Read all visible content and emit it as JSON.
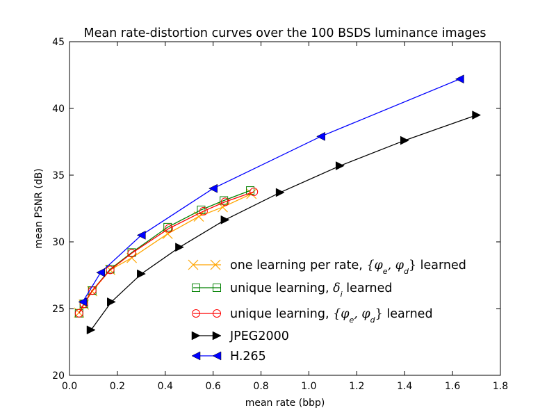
{
  "chart_data": {
    "type": "line",
    "title": "Mean rate-distortion curves over the 100 BSDS luminance images",
    "xlabel": "mean rate (bbp)",
    "ylabel": "mean PSNR (dB)",
    "xlim": [
      0.0,
      1.8
    ],
    "ylim": [
      20,
      45
    ],
    "x_ticks": [
      "0.0",
      "0.2",
      "0.4",
      "0.6",
      "0.8",
      "1.0",
      "1.2",
      "1.4",
      "1.6",
      "1.8"
    ],
    "y_ticks": [
      "20",
      "25",
      "30",
      "35",
      "40",
      "45"
    ],
    "grid": false,
    "legend_position": "lower-right",
    "series": [
      {
        "name": "one learning per rate, {φe, φd} learned",
        "legend_main": "one learning per rate, ",
        "legend_math": "{φ",
        "legend_sub1": "e",
        "legend_mid": ", φ",
        "legend_sub2": "d",
        "legend_end": "}",
        "legend_tail": " learned",
        "color": "#ffa500",
        "marker": "x",
        "x": [
          0.04,
          0.06,
          0.095,
          0.17,
          0.26,
          0.41,
          0.54,
          0.64,
          0.76
        ],
        "y": [
          24.7,
          25.3,
          26.3,
          27.9,
          28.8,
          30.6,
          31.9,
          32.6,
          33.6
        ]
      },
      {
        "name": "unique learning, δi learned",
        "legend_main": "unique learning, ",
        "legend_math": "δ",
        "legend_sub1": "i",
        "legend_tail": " learned",
        "color": "#008000",
        "marker": "square",
        "x": [
          0.04,
          0.06,
          0.095,
          0.17,
          0.26,
          0.41,
          0.55,
          0.645,
          0.755
        ],
        "y": [
          24.65,
          25.35,
          26.35,
          27.95,
          29.2,
          31.1,
          32.4,
          33.1,
          33.85
        ]
      },
      {
        "name": "unique learning, {φe, φd} learned",
        "legend_main": "unique learning, ",
        "legend_math": "{φ",
        "legend_sub1": "e",
        "legend_mid": ", φ",
        "legend_sub2": "d",
        "legend_end": "}",
        "legend_tail": " learned",
        "color": "#ff0000",
        "marker": "circle",
        "x": [
          0.04,
          0.06,
          0.095,
          0.17,
          0.26,
          0.415,
          0.56,
          0.65,
          0.77
        ],
        "y": [
          24.65,
          25.35,
          26.35,
          27.9,
          29.15,
          31.0,
          32.3,
          33.0,
          33.75
        ]
      },
      {
        "name": "JPEG2000",
        "color": "#000000",
        "marker": "triangle-right",
        "x": [
          0.09,
          0.175,
          0.3,
          0.46,
          0.65,
          0.88,
          1.13,
          1.4,
          1.7
        ],
        "y": [
          23.4,
          25.5,
          27.6,
          29.6,
          31.65,
          33.7,
          35.7,
          37.6,
          39.5
        ]
      },
      {
        "name": "H.265",
        "color": "#0000ff",
        "marker": "triangle-left",
        "x": [
          0.055,
          0.13,
          0.3,
          0.6,
          1.05,
          1.63
        ],
        "y": [
          25.5,
          27.7,
          30.5,
          34.0,
          37.9,
          42.2
        ]
      }
    ]
  }
}
